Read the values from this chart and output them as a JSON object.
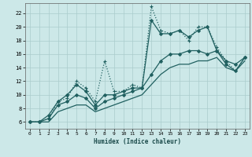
{
  "xlabel": "Humidex (Indice chaleur)",
  "xlim": [
    -0.5,
    23.5
  ],
  "ylim": [
    5,
    23.5
  ],
  "yticks": [
    6,
    8,
    10,
    12,
    14,
    16,
    18,
    20,
    22
  ],
  "xticks": [
    0,
    1,
    2,
    3,
    4,
    5,
    6,
    7,
    8,
    9,
    10,
    11,
    12,
    13,
    14,
    15,
    16,
    17,
    18,
    19,
    20,
    21,
    22,
    23
  ],
  "bg_color": "#cce8e8",
  "grid_color": "#aacccc",
  "line_color": "#206060",
  "lines": [
    {
      "x": [
        0,
        1,
        2,
        3,
        4,
        5,
        6,
        7,
        8,
        9,
        10,
        11,
        12,
        13,
        14,
        15,
        16,
        17,
        18,
        19,
        20,
        21,
        22,
        23
      ],
      "y": [
        6,
        6,
        6.5,
        9,
        9.5,
        12,
        11,
        9,
        15,
        10.5,
        10.5,
        11.5,
        11,
        23,
        19.5,
        19,
        19.5,
        18,
        20,
        20,
        17,
        15,
        13.5,
        15.5
      ],
      "linestyle": "dotted",
      "marker": "+",
      "markersize": 3.5,
      "linewidth": 0.9
    },
    {
      "x": [
        0,
        1,
        2,
        3,
        4,
        5,
        6,
        7,
        8,
        9,
        10,
        11,
        12,
        13,
        14,
        15,
        16,
        17,
        18,
        19,
        20,
        21,
        22,
        23
      ],
      "y": [
        6,
        6,
        7,
        9,
        10,
        11.5,
        10.5,
        8.5,
        10,
        10,
        10.5,
        11,
        11,
        21,
        19,
        19,
        19.5,
        18.5,
        19.5,
        20,
        16.5,
        14.5,
        13.5,
        15.5
      ],
      "linestyle": "solid",
      "marker": "D",
      "markersize": 2.0,
      "linewidth": 0.9
    },
    {
      "x": [
        0,
        1,
        2,
        3,
        4,
        5,
        6,
        7,
        8,
        9,
        10,
        11,
        12,
        13,
        14,
        15,
        16,
        17,
        18,
        19,
        20,
        21,
        22,
        23
      ],
      "y": [
        6,
        6,
        6.5,
        8.5,
        9,
        10,
        9.5,
        8,
        9,
        9.5,
        10,
        10.5,
        11,
        13,
        15,
        16,
        16,
        16.5,
        16.5,
        16,
        16.5,
        15,
        14.5,
        15.5
      ],
      "linestyle": "solid",
      "marker": "D",
      "markersize": 2.0,
      "linewidth": 0.9
    },
    {
      "x": [
        0,
        1,
        2,
        3,
        4,
        5,
        6,
        7,
        8,
        9,
        10,
        11,
        12,
        13,
        14,
        15,
        16,
        17,
        18,
        19,
        20,
        21,
        22,
        23
      ],
      "y": [
        6,
        6,
        6,
        7.5,
        8,
        8.5,
        8.5,
        7.5,
        8,
        8.5,
        9,
        9.5,
        10,
        11.5,
        13,
        14,
        14.5,
        14.5,
        15,
        15,
        15.5,
        14,
        13.5,
        15
      ],
      "linestyle": "solid",
      "marker": null,
      "markersize": 0,
      "linewidth": 0.9
    }
  ]
}
